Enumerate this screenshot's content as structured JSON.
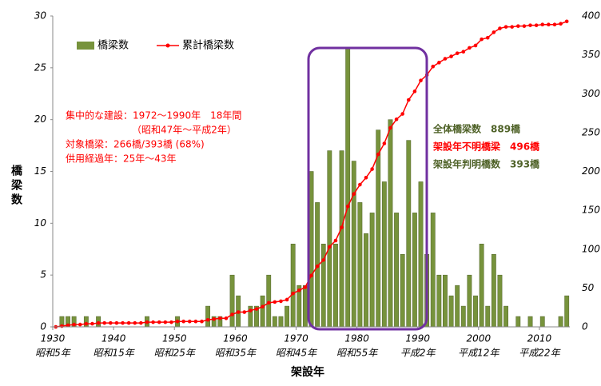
{
  "chart_data": {
    "type": "bar",
    "x": [
      1930,
      1931,
      1932,
      1933,
      1934,
      1935,
      1936,
      1937,
      1938,
      1939,
      1940,
      1941,
      1942,
      1943,
      1944,
      1945,
      1946,
      1947,
      1948,
      1949,
      1950,
      1951,
      1952,
      1953,
      1954,
      1955,
      1956,
      1957,
      1958,
      1959,
      1960,
      1961,
      1962,
      1963,
      1964,
      1965,
      1966,
      1967,
      1968,
      1969,
      1970,
      1971,
      1972,
      1973,
      1974,
      1975,
      1976,
      1977,
      1978,
      1979,
      1980,
      1981,
      1982,
      1983,
      1984,
      1985,
      1986,
      1987,
      1988,
      1989,
      1990,
      1991,
      1992,
      1993,
      1994,
      1995,
      1996,
      1997,
      1998,
      1999,
      2000,
      2001,
      2002,
      2003,
      2004,
      2005,
      2006,
      2007,
      2008,
      2009,
      2010,
      2011,
      2012,
      2013,
      2014
    ],
    "series": [
      {
        "name": "橋梁数",
        "type": "bar",
        "color": "#77933c",
        "values": [
          0,
          1,
          1,
          1,
          0,
          1,
          0,
          1,
          0,
          0,
          0,
          0,
          0,
          0,
          0,
          1,
          0,
          0,
          0,
          0,
          1,
          0,
          0,
          0,
          0,
          2,
          1,
          1,
          0,
          5,
          3,
          0,
          2,
          2,
          3,
          5,
          1,
          1,
          2,
          8,
          4,
          4,
          15,
          12,
          8,
          17,
          8,
          17,
          27,
          16,
          12,
          9,
          11,
          19,
          14,
          20,
          11,
          7,
          18,
          11,
          14,
          7,
          11,
          5,
          5,
          3,
          4,
          2,
          5,
          3,
          8,
          2,
          7,
          5,
          2,
          0,
          1,
          0,
          1,
          0,
          1,
          0,
          0,
          1,
          3
        ]
      },
      {
        "name": "累計橋梁数",
        "type": "line",
        "axis": "y2",
        "color": "#ff0000",
        "values": [
          0,
          1,
          2,
          3,
          3,
          4,
          4,
          5,
          5,
          5,
          5,
          5,
          5,
          5,
          5,
          6,
          6,
          6,
          6,
          6,
          7,
          7,
          7,
          7,
          7,
          9,
          10,
          11,
          11,
          16,
          19,
          19,
          21,
          23,
          26,
          31,
          32,
          33,
          35,
          43,
          47,
          51,
          66,
          78,
          86,
          103,
          111,
          128,
          155,
          171,
          183,
          192,
          203,
          222,
          236,
          256,
          267,
          274,
          292,
          303,
          317,
          324,
          335,
          340,
          345,
          348,
          352,
          354,
          359,
          362,
          370,
          372,
          379,
          384,
          386,
          386,
          387,
          387,
          388,
          388,
          389,
          389,
          389,
          390,
          393
        ]
      }
    ],
    "xlim": [
      1930,
      2015
    ],
    "xticks": [
      1930,
      1940,
      1950,
      1960,
      1970,
      1980,
      1990,
      2000,
      2010
    ],
    "xtick_sublabels": [
      "昭和5年",
      "昭和15年",
      "昭和25年",
      "昭和35年",
      "昭和45年",
      "昭和55年",
      "平成2年",
      "平成12年",
      "平成22年"
    ],
    "ylim": [
      0,
      30
    ],
    "yticks": [
      0,
      5,
      10,
      15,
      20,
      25,
      30
    ],
    "y2lim": [
      0,
      400
    ],
    "y2ticks": [
      0,
      50,
      100,
      150,
      200,
      250,
      300,
      350,
      400
    ],
    "ylabel": "橋梁数",
    "xlabel": "架設年",
    "annotation_color": "#ff0000",
    "annotations": [
      "集中的な建設：1972～1990年　18年間",
      "（昭和47年～平成2年）",
      "対象橋梁：266橋/393橋 (68%)",
      "供用経過年：25年～43年"
    ],
    "summary": [
      {
        "text": "全体橋梁数　889橋",
        "color": "#4f6228"
      },
      {
        "text": "架設年不明橋梁　496橋",
        "color": "#ff0000"
      },
      {
        "text": "架設年判明橋数　393橋",
        "color": "#4f6228"
      }
    ]
  }
}
